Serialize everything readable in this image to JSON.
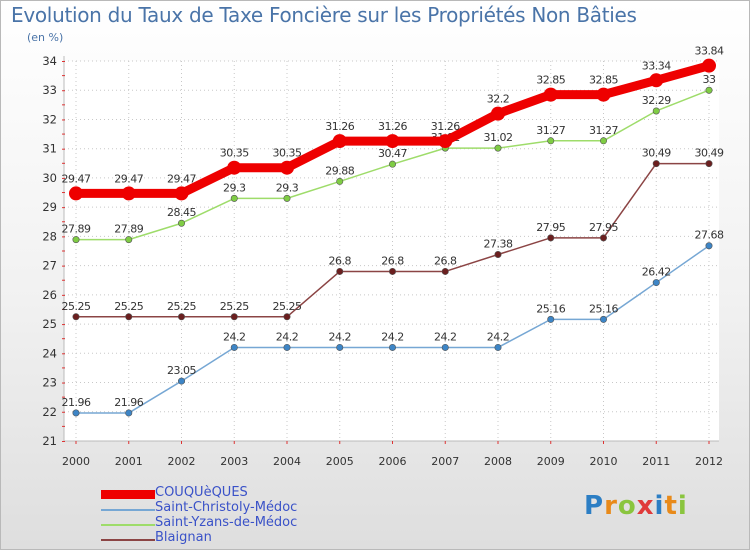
{
  "title": "Evolution du Taux de Taxe Foncière sur les Propriétés Non Bâties",
  "subtitle": "(en %)",
  "brand": {
    "text": "Proxiti",
    "letters": [
      "P",
      "r",
      "o",
      "x",
      "i",
      "t",
      "i"
    ],
    "letter_colors": [
      "#2c7ec4",
      "#e88a1a",
      "#8ac53e",
      "#e03a3a",
      "#2c7ec4",
      "#e88a1a",
      "#8ac53e"
    ]
  },
  "chart_data": {
    "type": "line",
    "title": "Evolution du Taux de Taxe Foncière sur les Propriétés Non Bâties",
    "ylabel": "(en %)",
    "xlabel": "",
    "categories": [
      "2000",
      "2001",
      "2002",
      "2003",
      "2004",
      "2005",
      "2006",
      "2007",
      "2008",
      "2009",
      "2010",
      "2011",
      "2012"
    ],
    "ylim": [
      21,
      34
    ],
    "yticks": [
      21,
      22,
      23,
      24,
      25,
      26,
      27,
      28,
      29,
      30,
      31,
      32,
      33,
      34
    ],
    "grid": true,
    "legend_position": "bottom-left",
    "series": [
      {
        "name": "COUQUèQUES",
        "color": "#ee0000",
        "marker": "#ee0000",
        "values": [
          29.47,
          29.47,
          29.47,
          30.35,
          30.35,
          31.26,
          31.26,
          31.26,
          32.2,
          32.85,
          32.85,
          33.34,
          33.84
        ],
        "labels": [
          "29.47",
          "29.47",
          "29.47",
          "30.35",
          "30.35",
          "31.26",
          "31.26",
          "31.26",
          "32.2",
          "32.85",
          "32.85",
          "33.34",
          "33.84"
        ]
      },
      {
        "name": "Saint-Christoly-Médoc",
        "color": "#76a7d4",
        "marker": "#3d85c6",
        "values": [
          21.96,
          21.96,
          23.05,
          24.2,
          24.2,
          24.2,
          24.2,
          24.2,
          24.2,
          25.16,
          25.16,
          26.42,
          27.68
        ],
        "labels": [
          "21.96",
          "21.96",
          "23.05",
          "24.2",
          "24.2",
          "24.2",
          "24.2",
          "24.2",
          "24.2",
          "25.16",
          "25.16",
          "26.42",
          "27.68"
        ]
      },
      {
        "name": "Saint-Yzans-de-Médoc",
        "color": "#9edc6a",
        "marker": "#7fcc44",
        "values": [
          27.89,
          27.89,
          28.45,
          29.3,
          29.3,
          29.88,
          30.47,
          31.02,
          31.02,
          31.27,
          31.27,
          32.29,
          33
        ],
        "labels": [
          "27.89",
          "27.89",
          "28.45",
          "29.3",
          "29.3",
          "29.88",
          "30.47",
          "31.02",
          "31.02",
          "31.27",
          "31.27",
          "32.29",
          "33"
        ]
      },
      {
        "name": "Blaignan",
        "color": "#8b4444",
        "marker": "#6b1f1f",
        "values": [
          25.25,
          25.25,
          25.25,
          25.25,
          25.25,
          26.8,
          26.8,
          26.8,
          27.38,
          27.95,
          27.95,
          30.49,
          30.49
        ],
        "labels": [
          "25.25",
          "25.25",
          "25.25",
          "25.25",
          "25.25",
          "26.8",
          "26.8",
          "26.8",
          "27.38",
          "27.95",
          "27.95",
          "30.49",
          "30.49"
        ]
      }
    ]
  }
}
